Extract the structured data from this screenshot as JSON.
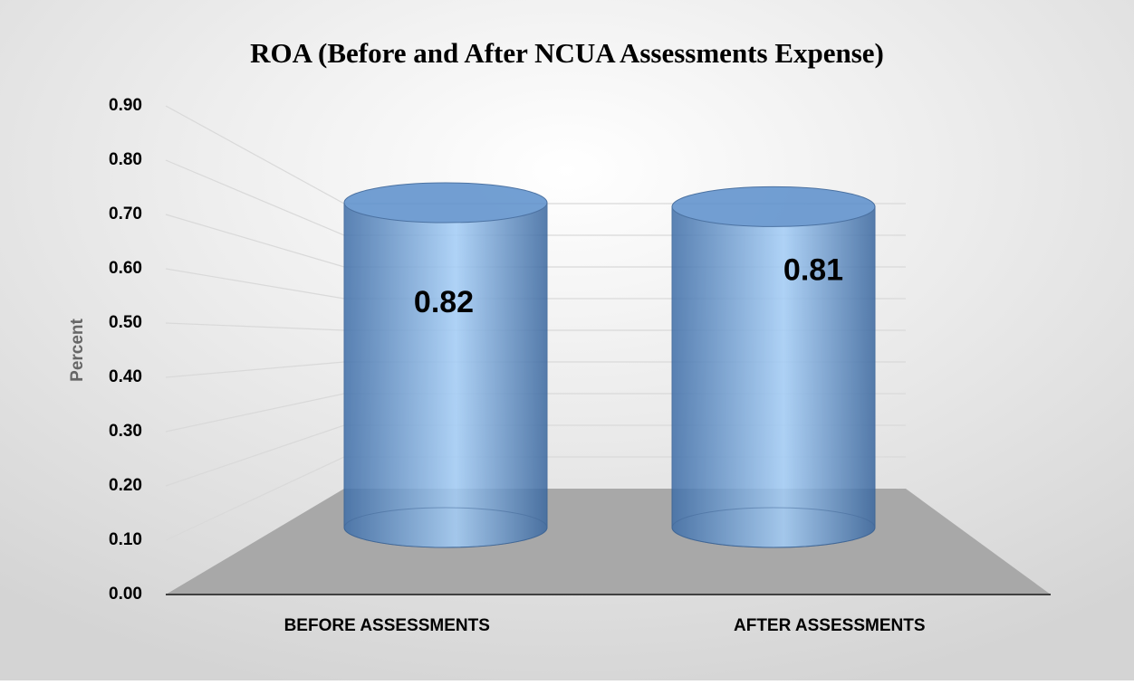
{
  "chart_data": {
    "type": "bar",
    "title": "ROA (Before and After NCUA Assessments Expense)",
    "y_label": "Percent",
    "categories": [
      "BEFORE ASSESSMENTS",
      "AFTER ASSESSMENTS"
    ],
    "values": [
      0.82,
      0.81
    ],
    "color": "#5b8fcc",
    "ylim": [
      0,
      0.9
    ],
    "yticks": [
      {
        "value": 0,
        "label": "0.00"
      },
      {
        "value": 0.1,
        "label": "0.10"
      },
      {
        "value": 0.2,
        "label": "0.20"
      },
      {
        "value": 0.3,
        "label": "0.30"
      },
      {
        "value": 0.4,
        "label": "0.40"
      },
      {
        "value": 0.5,
        "label": "0.50"
      },
      {
        "value": 0.6,
        "label": "0.60"
      },
      {
        "value": 0.7,
        "label": "0.70"
      },
      {
        "value": 0.8,
        "label": "0.80"
      },
      {
        "value": 0.9,
        "label": "0.90"
      }
    ],
    "grid": true
  }
}
